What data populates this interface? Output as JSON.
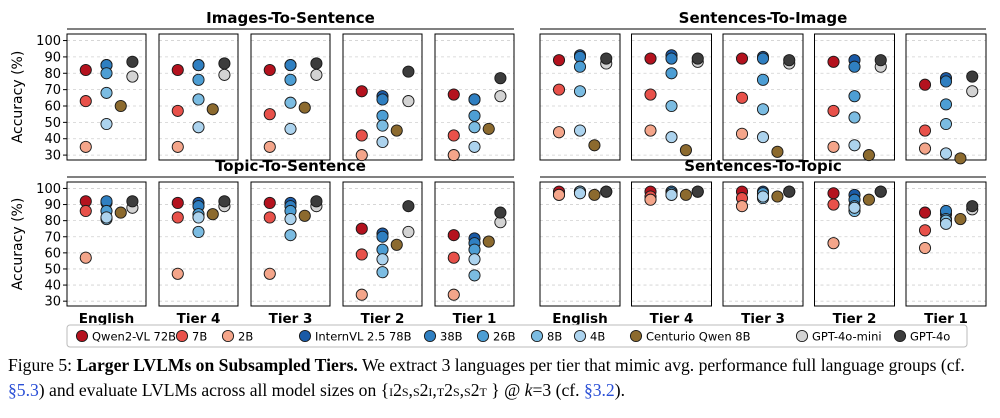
{
  "chart_data": {
    "type": "scatter",
    "ylabel": "Accuracy (%)",
    "yticks": [
      30,
      40,
      50,
      60,
      70,
      80,
      90,
      100
    ],
    "ylim": [
      27,
      104
    ],
    "tiers": [
      "English",
      "Tier 4",
      "Tier 3",
      "Tier 2",
      "Tier 1"
    ],
    "models": [
      {
        "name": "Qwen2-VL 72B",
        "color": "#b4121e"
      },
      {
        "name": "7B",
        "color": "#e8514a"
      },
      {
        "name": "2B",
        "color": "#f4a58a"
      },
      {
        "name": "InternVL 2.5 78B",
        "color": "#1a5aa6"
      },
      {
        "name": "38B",
        "color": "#2f7fc1"
      },
      {
        "name": "26B",
        "color": "#4d9ed4"
      },
      {
        "name": "8B",
        "color": "#7bbce2"
      },
      {
        "name": "4B",
        "color": "#acd3ee"
      },
      {
        "name": "Centurio Qwen 8B",
        "color": "#8c6a2e"
      },
      {
        "name": "GPT-4o-mini",
        "color": "#d3d3d3"
      },
      {
        "name": "GPT-4o",
        "color": "#3c3c3c"
      }
    ],
    "panels": [
      {
        "title": "Images-To-Sentence",
        "values": [
          [
            82,
            63,
            35,
            85,
            85,
            80,
            68,
            49,
            60,
            78,
            87
          ],
          [
            82,
            57,
            35,
            85,
            85,
            76,
            64,
            47,
            58,
            79,
            86
          ],
          [
            82,
            55,
            35,
            85,
            85,
            76,
            62,
            46,
            59,
            79,
            86
          ],
          [
            69,
            42,
            30,
            66,
            64,
            54,
            48,
            38,
            45,
            63,
            81
          ],
          [
            67,
            42,
            30,
            64,
            64,
            54,
            47,
            35,
            46,
            66,
            77
          ]
        ]
      },
      {
        "title": "Sentences-To-Image",
        "values": [
          [
            88,
            70,
            44,
            91,
            90,
            84,
            69,
            45,
            36,
            86,
            89
          ],
          [
            89,
            67,
            45,
            91,
            89,
            80,
            60,
            41,
            33,
            87,
            89
          ],
          [
            89,
            65,
            43,
            90,
            89,
            76,
            58,
            41,
            32,
            86,
            88
          ],
          [
            87,
            57,
            35,
            88,
            84,
            66,
            53,
            36,
            30,
            84,
            88
          ],
          [
            73,
            45,
            34,
            77,
            75,
            61,
            49,
            31,
            28,
            69,
            78
          ]
        ]
      },
      {
        "title": "Topic-To-Sentence",
        "values": [
          [
            92,
            86,
            57,
            91,
            92,
            86,
            81,
            82,
            85,
            88,
            92
          ],
          [
            91,
            82,
            47,
            91,
            89,
            84,
            73,
            82,
            84,
            89,
            92
          ],
          [
            91,
            82,
            47,
            91,
            89,
            86,
            71,
            81,
            83,
            89,
            92
          ],
          [
            75,
            59,
            34,
            72,
            70,
            62,
            48,
            56,
            65,
            73,
            89
          ],
          [
            71,
            57,
            34,
            69,
            66,
            62,
            46,
            56,
            67,
            79,
            85
          ]
        ]
      },
      {
        "title": "Sentences-To-Topic",
        "values": [
          [
            98,
            96,
            96,
            98,
            98,
            98,
            98,
            97,
            96,
            98,
            98
          ],
          [
            98,
            95,
            93,
            98,
            98,
            97,
            96,
            96,
            96,
            98,
            98
          ],
          [
            98,
            94,
            89,
            98,
            97,
            97,
            94,
            95,
            95,
            98,
            98
          ],
          [
            97,
            90,
            66,
            96,
            93,
            89,
            86,
            88,
            93,
            98,
            98
          ],
          [
            85,
            74,
            63,
            84,
            86,
            81,
            80,
            78,
            81,
            87,
            89
          ]
        ]
      }
    ]
  },
  "caption": {
    "label": "Figure 5:",
    "title": "Larger LVLMs on Subsampled Tiers.",
    "text1": "We extract 3 languages per tier that mimic avg. performance full language groups (cf. ",
    "ref1": "§5.3",
    "text2": ") and evaluate LVLMs across all model sizes on {",
    "tasks": "i2s,s2i,t2s,s2t",
    "text3": " } @ ",
    "kvar": "k",
    "kval": "=3 (cf. ",
    "ref2": "§3.2",
    "text4": ")."
  }
}
